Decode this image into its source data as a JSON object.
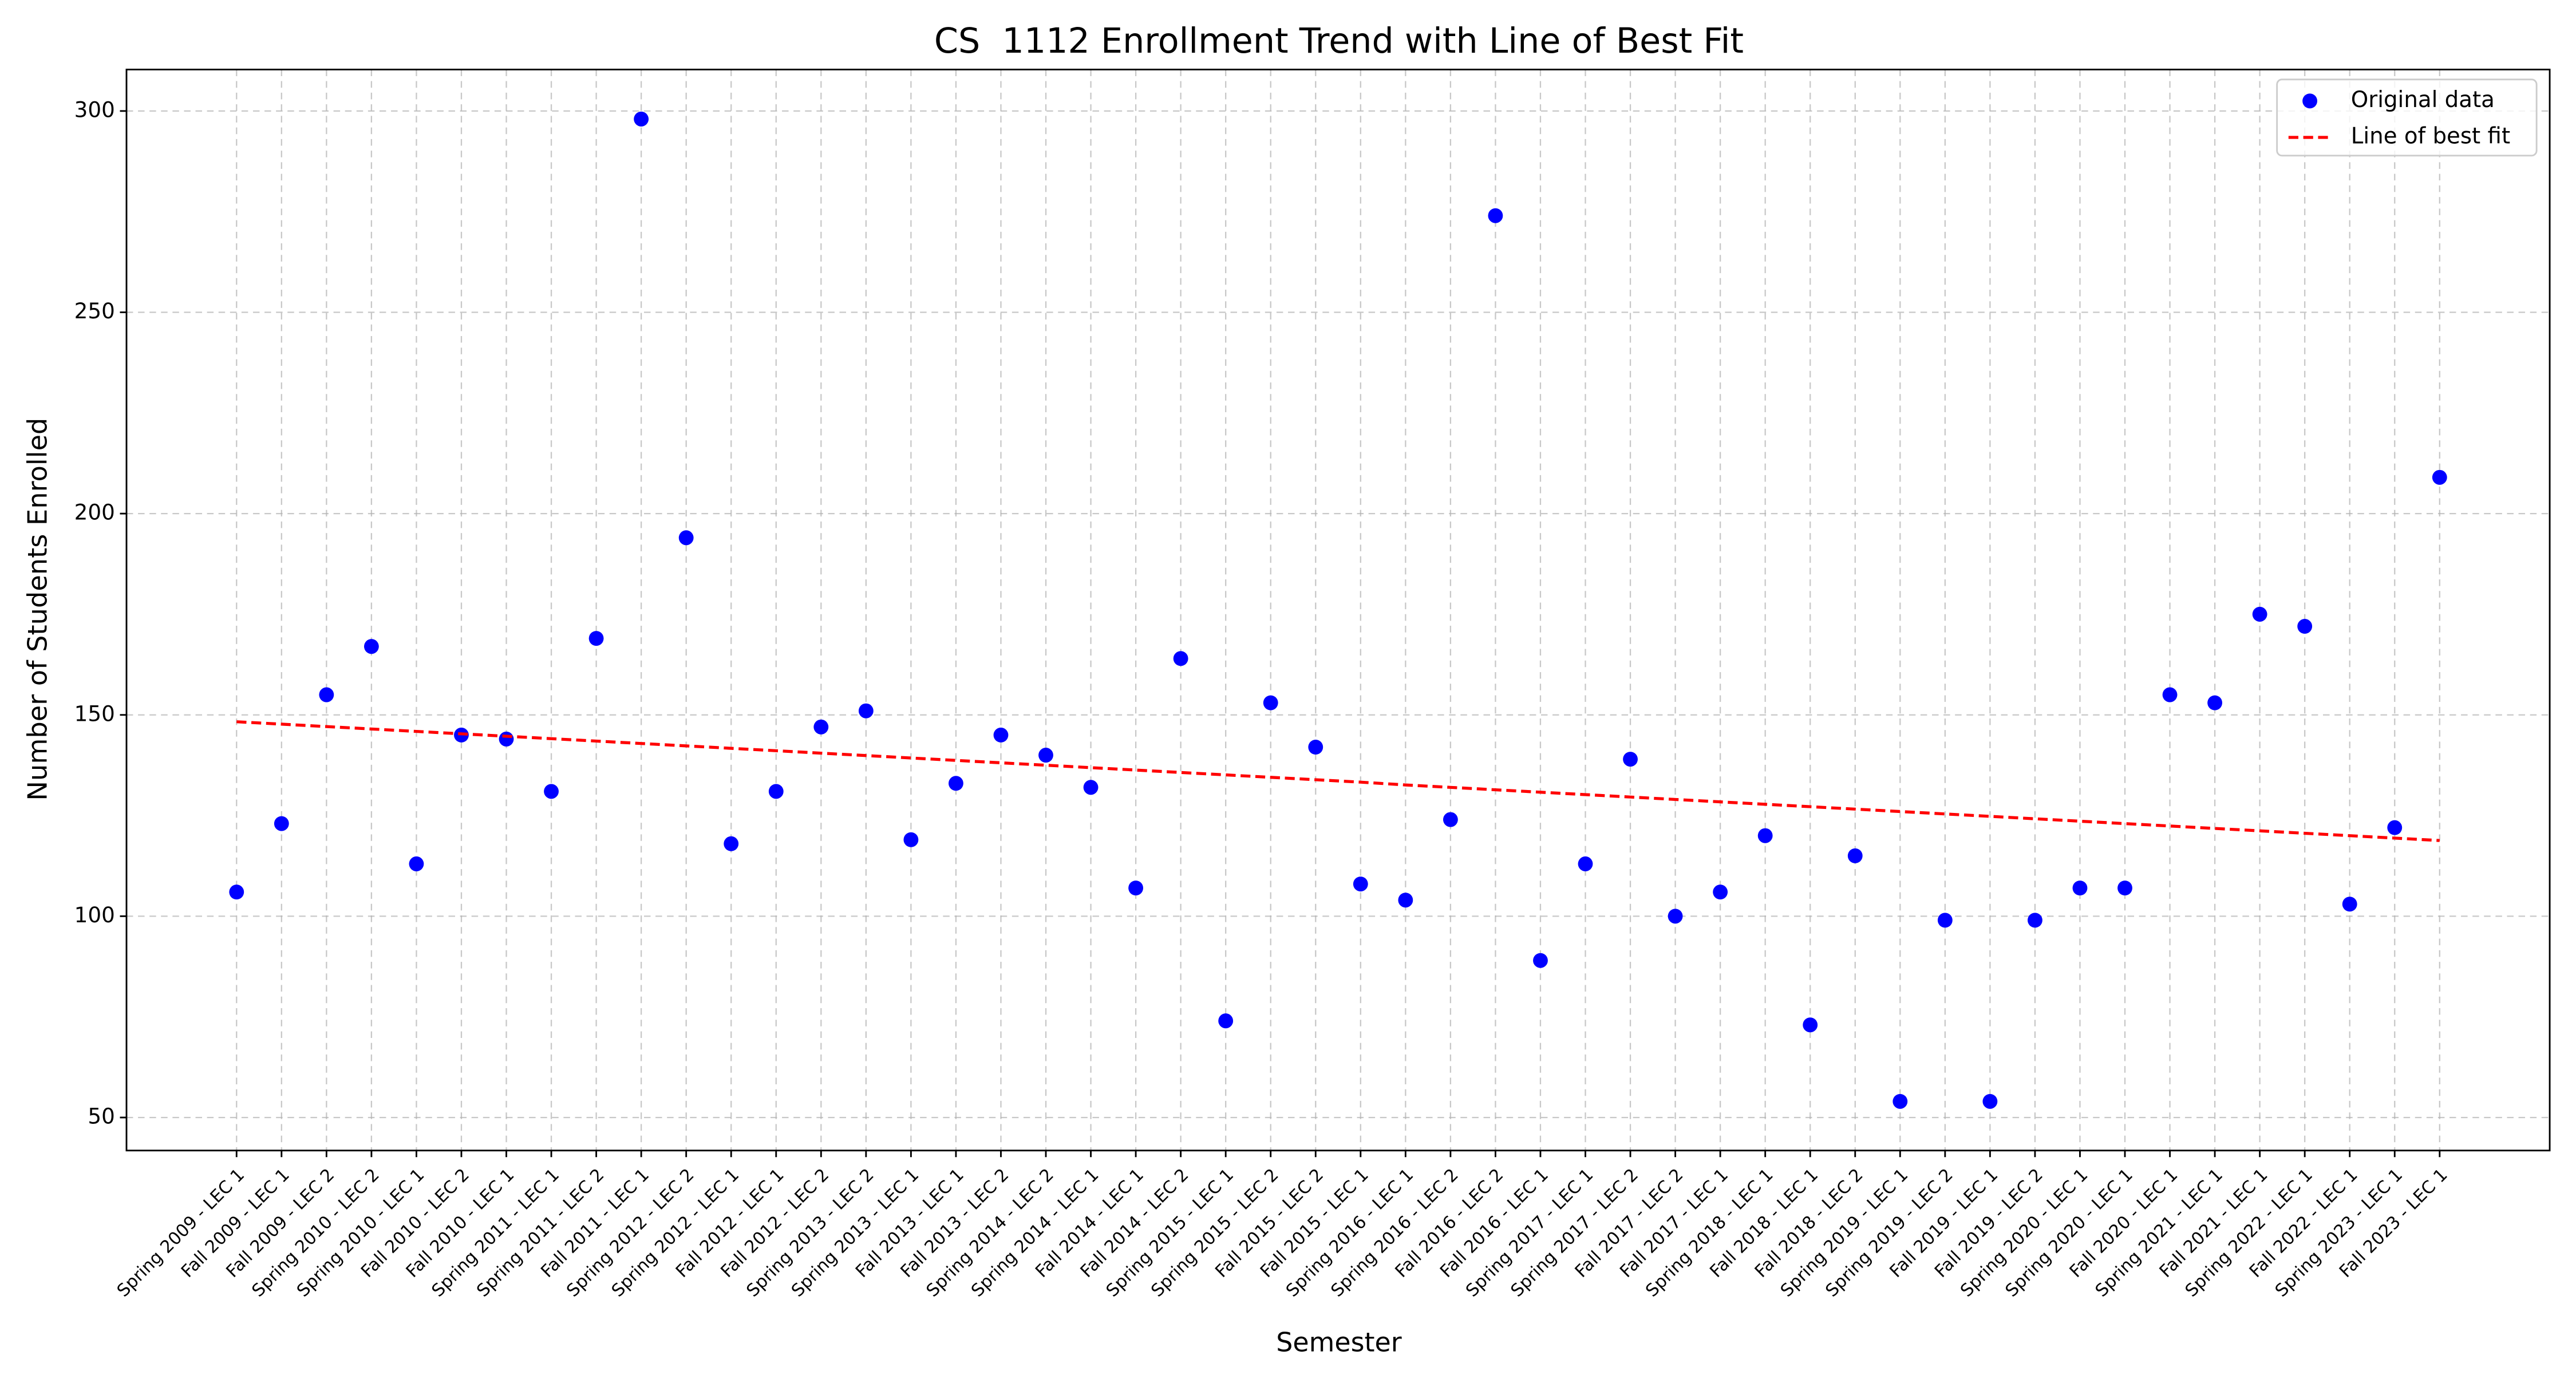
{
  "chart_data": {
    "type": "scatter",
    "title": "CS  1112 Enrollment Trend with Line of Best Fit",
    "x_label": "Semester",
    "y_label": "Number of Students Enrolled",
    "categories": [
      "Spring 2009 - LEC 1",
      "Fall 2009 - LEC 1",
      "Fall 2009 - LEC 2",
      "Spring 2010 - LEC 2",
      "Spring 2010 - LEC 1",
      "Fall 2010 - LEC 2",
      "Fall 2010 - LEC 1",
      "Spring 2011 - LEC 1",
      "Spring 2011 - LEC 2",
      "Fall 2011 - LEC 1",
      "Spring 2012 - LEC 2",
      "Spring 2012 - LEC 1",
      "Fall 2012 - LEC 1",
      "Fall 2012 - LEC 2",
      "Spring 2013 - LEC 2",
      "Spring 2013 - LEC 1",
      "Fall 2013 - LEC 1",
      "Fall 2013 - LEC 2",
      "Spring 2014 - LEC 2",
      "Spring 2014 - LEC 1",
      "Fall 2014 - LEC 1",
      "Fall 2014 - LEC 2",
      "Spring 2015 - LEC 1",
      "Spring 2015 - LEC 2",
      "Fall 2015 - LEC 2",
      "Fall 2015 - LEC 1",
      "Spring 2016 - LEC 1",
      "Spring 2016 - LEC 2",
      "Fall 2016 - LEC 2",
      "Fall 2016 - LEC 1",
      "Spring 2017 - LEC 1",
      "Spring 2017 - LEC 2",
      "Fall 2017 - LEC 2",
      "Fall 2017 - LEC 1",
      "Spring 2018 - LEC 1",
      "Fall 2018 - LEC 1",
      "Fall 2018 - LEC 2",
      "Spring 2019 - LEC 1",
      "Spring 2019 - LEC 2",
      "Fall 2019 - LEC 1",
      "Fall 2019 - LEC 2",
      "Spring 2020 - LEC 1",
      "Spring 2020 - LEC 1",
      "Fall 2020 - LEC 1",
      "Spring 2021 - LEC 1",
      "Fall 2021 - LEC 1",
      "Spring 2022 - LEC 1",
      "Fall 2022 - LEC 1",
      "Spring 2023 - LEC 1",
      "Fall 2023 - LEC 1"
    ],
    "series": [
      {
        "name": "Original data",
        "color": "#0000ff",
        "style": "marker",
        "values": [
          106,
          123,
          155,
          167,
          113,
          145,
          144,
          131,
          169,
          298,
          194,
          118,
          131,
          147,
          151,
          119,
          133,
          145,
          140,
          132,
          107,
          164,
          74,
          153,
          142,
          108,
          104,
          124,
          274,
          89,
          113,
          139,
          100,
          106,
          120,
          73,
          115,
          54,
          99,
          54,
          99,
          107,
          107,
          155,
          153,
          175,
          172,
          103,
          122,
          209
        ]
      },
      {
        "name": "Line of best fit",
        "color": "#ff0000",
        "style": "dashed-line",
        "values": [
          148.3,
          147.7,
          147.1,
          146.5,
          145.9,
          145.3,
          144.7,
          144.1,
          143.5,
          142.9,
          142.3,
          141.7,
          141.1,
          140.5,
          139.9,
          139.3,
          138.7,
          138.1,
          137.5,
          136.9,
          136.3,
          135.7,
          135.1,
          134.5,
          133.9,
          133.3,
          132.6,
          132.0,
          131.4,
          130.8,
          130.2,
          129.6,
          129.0,
          128.4,
          127.8,
          127.2,
          126.6,
          126.0,
          125.4,
          124.8,
          124.2,
          123.6,
          123.0,
          122.4,
          121.8,
          121.2,
          120.6,
          120.0,
          119.4,
          118.8
        ]
      }
    ],
    "ylim": [
      41.8,
      310.3
    ],
    "yticks": [
      50,
      100,
      150,
      200,
      250,
      300
    ],
    "grid": true,
    "legend": "upper right"
  }
}
